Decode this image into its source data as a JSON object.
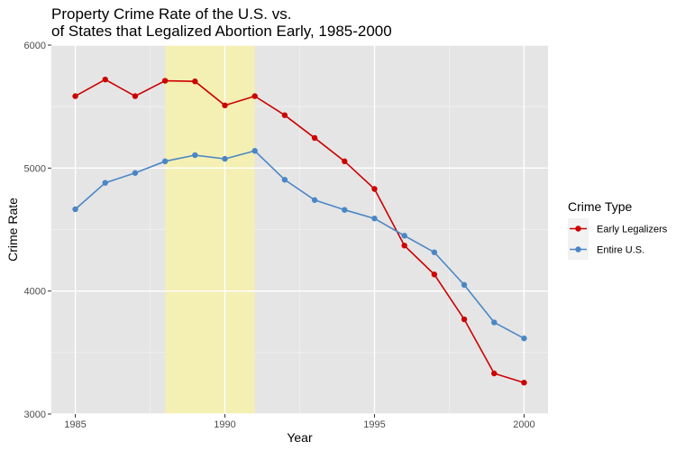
{
  "chart_data": {
    "type": "line",
    "title": [
      "Property Crime Rate of the U.S. vs.",
      "of States that Legalized Abortion Early, 1985-2000"
    ],
    "xlabel": "Year",
    "ylabel": "Crime Rate",
    "xlim": [
      1984.2,
      2000.8
    ],
    "ylim": [
      3000,
      6000
    ],
    "xticks": [
      {
        "value": 1985,
        "label": "1985"
      },
      {
        "value": 1990,
        "label": "1990"
      },
      {
        "value": 1995,
        "label": "1995"
      },
      {
        "value": 2000,
        "label": "2000"
      }
    ],
    "yticks": [
      {
        "value": 3000,
        "label": "3000"
      },
      {
        "value": 4000,
        "label": "4000"
      },
      {
        "value": 5000,
        "label": "5000"
      },
      {
        "value": 6000,
        "label": "6000"
      }
    ],
    "grid": true,
    "panel_color": "#e5e5e5",
    "highlight_band": {
      "x_start": 1988,
      "x_end": 1991,
      "color": "#f4efb3"
    },
    "legend": {
      "title": "Crime Type",
      "placement": "right"
    },
    "x": [
      1985,
      1986,
      1987,
      1988,
      1989,
      1990,
      1991,
      1992,
      1993,
      1994,
      1995,
      1996,
      1997,
      1998,
      1999,
      2000
    ],
    "series": [
      {
        "name": "Early Legalizers",
        "color": "#cc0000",
        "values": [
          5585,
          5720,
          5585,
          5710,
          5705,
          5510,
          5585,
          5430,
          5245,
          5055,
          4830,
          4370,
          4135,
          3770,
          3330,
          3255
        ]
      },
      {
        "name": "Entire U.S.",
        "color": "#4a86c5",
        "values": [
          4665,
          4880,
          4960,
          5055,
          5105,
          5075,
          5140,
          4905,
          4740,
          4660,
          4590,
          4450,
          4315,
          4050,
          3745,
          3615
        ]
      }
    ]
  }
}
